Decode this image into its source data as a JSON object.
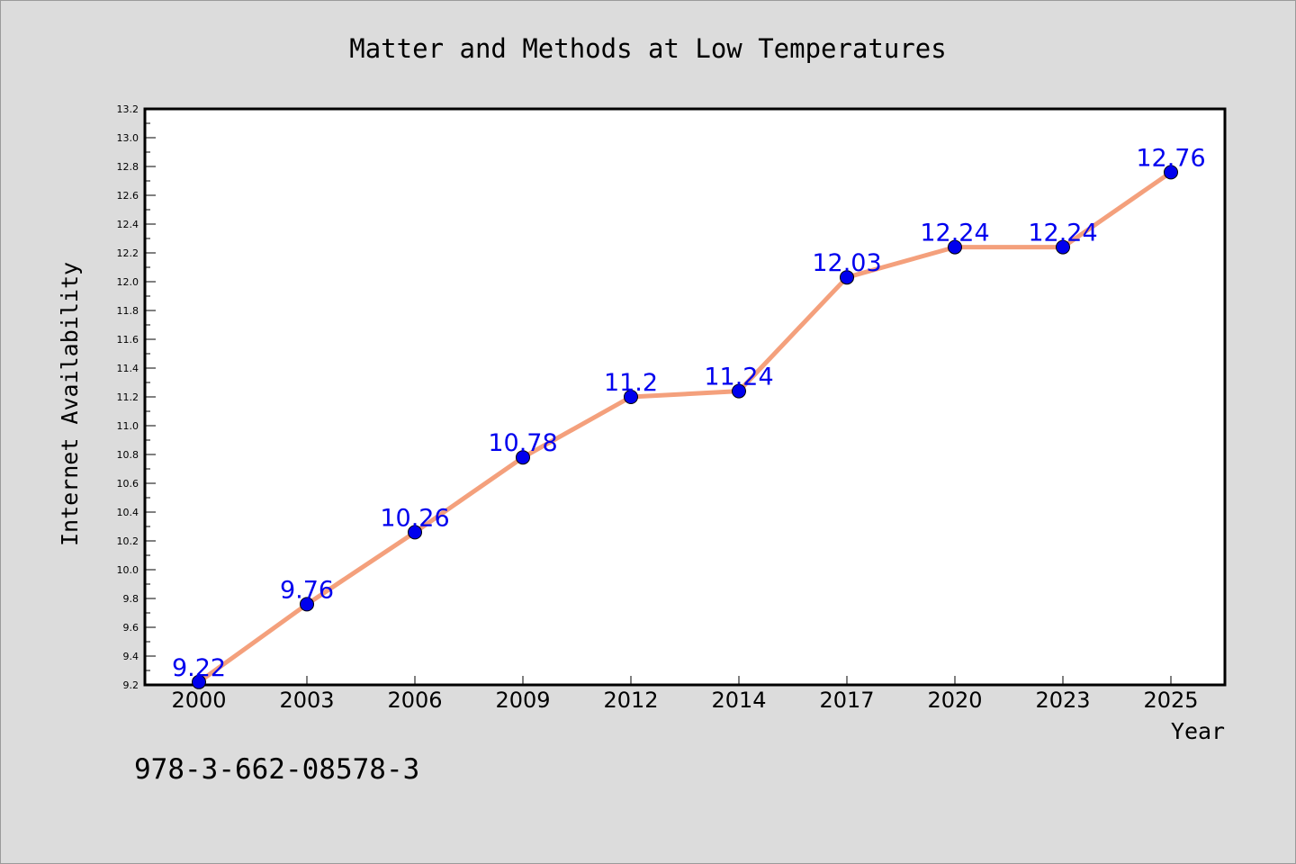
{
  "chart_data": {
    "type": "line",
    "title": "Matter and Methods at Low Temperatures",
    "xlabel": "Year",
    "ylabel": "Internet Availability",
    "categories": [
      "2000",
      "2003",
      "2006",
      "2009",
      "2012",
      "2014",
      "2017",
      "2020",
      "2023",
      "2025"
    ],
    "series": [
      {
        "values": [
          9.22,
          9.76,
          10.26,
          10.78,
          11.2,
          11.24,
          12.03,
          12.24,
          12.24,
          12.76
        ]
      }
    ],
    "data_labels": [
      "9.22",
      "9.76",
      "10.26",
      "10.78",
      "11.2",
      "11.24",
      "12.03",
      "12.24",
      "12.24",
      "12.76"
    ],
    "ylim": [
      9.2,
      13.2
    ],
    "yticks": [
      "9.2",
      "9.4",
      "9.6",
      "9.8",
      "10.0",
      "10.2",
      "10.4",
      "10.6",
      "10.8",
      "11.0",
      "11.2",
      "11.4",
      "11.6",
      "11.8",
      "12.0",
      "12.2",
      "12.4",
      "12.6",
      "12.8",
      "13.0",
      "13.2"
    ],
    "grid": false,
    "legend": "none",
    "line_color": "#f4a07c",
    "marker_color": "#0000ee",
    "label_color": "#0000ee",
    "background_color": "#dcdcdc",
    "plot_background_color": "#ffffff"
  },
  "footer": {
    "isbn": "978-3-662-08578-3"
  }
}
